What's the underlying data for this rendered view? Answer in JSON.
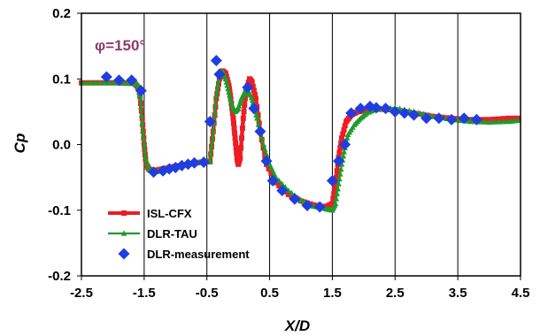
{
  "chart_data": {
    "type": "line",
    "xlabel": "X/D",
    "ylabel": "Cp",
    "annotation": "φ=150°",
    "xlim": [
      -2.5,
      4.5
    ],
    "ylim": [
      -0.2,
      0.2
    ],
    "xticks": [
      -2.5,
      -1.5,
      -0.5,
      0.5,
      1.5,
      2.5,
      3.5,
      4.5
    ],
    "xtick_labels": [
      "-2.5",
      "-1.5",
      "-0.5",
      "0.5",
      "1.5",
      "2.5",
      "3.5",
      "4.5"
    ],
    "yticks": [
      0.2,
      0.1,
      0.0,
      -0.1,
      -0.2
    ],
    "ytick_labels": [
      "0.2",
      "0.1",
      "0.0",
      "-0.1",
      "-0.2"
    ],
    "grid": "vertical",
    "legend_position": "bottom-left",
    "series": [
      {
        "name": "ISL-CFX",
        "color": "#ee1c24",
        "marker": "square",
        "x": [
          -2.5,
          -2.2,
          -1.9,
          -1.65,
          -1.58,
          -1.53,
          -1.5,
          -1.47,
          -1.42,
          -1.35,
          -1.2,
          -1.0,
          -0.8,
          -0.6,
          -0.45,
          -0.4,
          -0.35,
          -0.3,
          -0.25,
          -0.2,
          -0.15,
          -0.12,
          -0.08,
          -0.05,
          -0.02,
          0.0,
          0.03,
          0.08,
          0.12,
          0.18,
          0.22,
          0.28,
          0.35,
          0.45,
          0.6,
          0.8,
          1.0,
          1.2,
          1.4,
          1.5,
          1.55,
          1.6,
          1.65,
          1.72,
          1.8,
          1.9,
          2.0,
          2.2,
          2.5,
          2.8,
          3.1,
          3.4,
          3.7,
          4.0,
          4.3,
          4.5
        ],
        "y": [
          0.094,
          0.094,
          0.094,
          0.093,
          0.085,
          0.04,
          0.0,
          -0.03,
          -0.038,
          -0.04,
          -0.037,
          -0.033,
          -0.03,
          -0.027,
          -0.026,
          0.02,
          0.07,
          0.1,
          0.112,
          0.108,
          0.09,
          0.07,
          0.04,
          0.01,
          -0.02,
          -0.03,
          -0.02,
          0.04,
          0.08,
          0.1,
          0.095,
          0.07,
          0.02,
          -0.03,
          -0.058,
          -0.076,
          -0.086,
          -0.092,
          -0.095,
          -0.09,
          -0.06,
          -0.02,
          0.01,
          0.035,
          0.045,
          0.05,
          0.052,
          0.054,
          0.053,
          0.048,
          0.043,
          0.04,
          0.038,
          0.038,
          0.04,
          0.04
        ]
      },
      {
        "name": "DLR-TAU",
        "color": "#1e9b2a",
        "marker": "triangle",
        "x": [
          -2.5,
          -2.2,
          -1.9,
          -1.65,
          -1.6,
          -1.56,
          -1.52,
          -1.48,
          -1.42,
          -1.35,
          -1.2,
          -1.0,
          -0.8,
          -0.6,
          -0.45,
          -0.4,
          -0.35,
          -0.3,
          -0.25,
          -0.2,
          -0.15,
          -0.1,
          -0.05,
          0.0,
          0.05,
          0.1,
          0.15,
          0.2,
          0.25,
          0.3,
          0.4,
          0.5,
          0.6,
          0.8,
          1.0,
          1.2,
          1.4,
          1.5,
          1.55,
          1.6,
          1.65,
          1.7,
          1.75,
          1.85,
          1.95,
          2.05,
          2.2,
          2.5,
          2.8,
          3.1,
          3.4,
          3.7,
          4.0,
          4.3,
          4.5
        ],
        "y": [
          0.094,
          0.094,
          0.094,
          0.093,
          0.09,
          0.07,
          0.02,
          -0.02,
          -0.038,
          -0.042,
          -0.04,
          -0.035,
          -0.03,
          -0.027,
          -0.025,
          0.02,
          0.075,
          0.105,
          0.112,
          0.1,
          0.08,
          0.06,
          0.05,
          0.055,
          0.07,
          0.08,
          0.082,
          0.075,
          0.06,
          0.04,
          0.0,
          -0.03,
          -0.05,
          -0.07,
          -0.085,
          -0.094,
          -0.098,
          -0.1,
          -0.09,
          -0.06,
          -0.03,
          -0.005,
          0.015,
          0.03,
          0.04,
          0.048,
          0.054,
          0.056,
          0.05,
          0.043,
          0.038,
          0.035,
          0.034,
          0.035,
          0.037
        ]
      },
      {
        "name": "DLR-measurement",
        "color": "#1f3ee0",
        "marker": "diamond",
        "x": [
          -2.1,
          -1.9,
          -1.7,
          -1.55,
          -1.35,
          -1.2,
          -1.1,
          -1.0,
          -0.9,
          -0.8,
          -0.7,
          -0.55,
          -0.45,
          -0.35,
          -0.3,
          0.15,
          0.25,
          0.35,
          0.45,
          0.55,
          0.7,
          0.9,
          1.1,
          1.3,
          1.5,
          1.6,
          1.7,
          1.8,
          1.95,
          2.1,
          2.2,
          2.35,
          2.5,
          2.65,
          2.8,
          3.0,
          3.2,
          3.4,
          3.6,
          3.8
        ],
        "y": [
          0.103,
          0.098,
          0.098,
          0.082,
          -0.042,
          -0.04,
          -0.037,
          -0.035,
          -0.032,
          -0.03,
          -0.028,
          -0.027,
          0.035,
          0.128,
          0.107,
          0.087,
          0.055,
          0.02,
          -0.025,
          -0.055,
          -0.07,
          -0.083,
          -0.093,
          -0.095,
          -0.055,
          -0.025,
          0.0,
          0.048,
          0.055,
          0.058,
          0.056,
          0.055,
          0.05,
          0.048,
          0.045,
          0.04,
          0.04,
          0.038,
          0.04,
          0.038
        ]
      }
    ]
  }
}
